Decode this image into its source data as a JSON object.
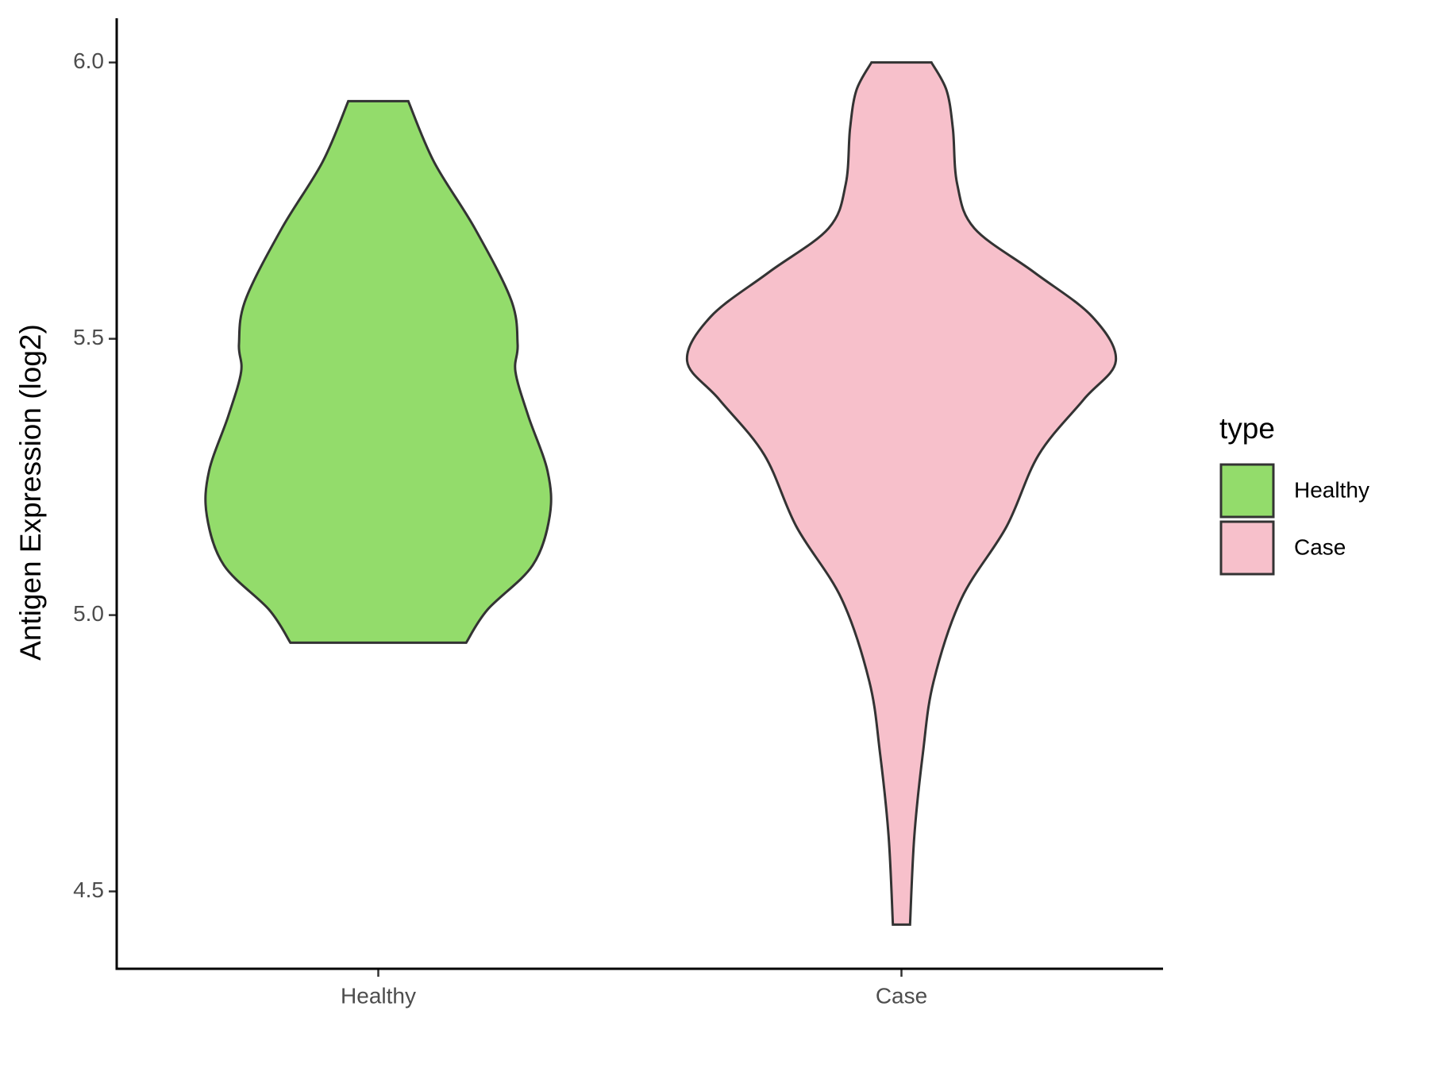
{
  "chart_data": {
    "type": "violin",
    "y_label": "Antigen Expression (log2)",
    "categories": [
      "Healthy",
      "Case"
    ],
    "ylim": [
      4.36,
      6.08
    ],
    "yticks": [
      {
        "value": 4.5,
        "label": "4.5"
      },
      {
        "value": 5.0,
        "label": "5.0"
      },
      {
        "value": 5.5,
        "label": "5.5"
      },
      {
        "value": 6.0,
        "label": "6.0"
      }
    ],
    "legend_title": "type",
    "legend_position": "right",
    "series": [
      {
        "name": "Healthy",
        "color": "#93dc6b",
        "y": [
          5.93,
          5.82,
          5.7,
          5.57,
          5.49,
          5.44,
          5.36,
          5.26,
          5.18,
          5.09,
          5.01,
          4.95
        ],
        "density": [
          0.14,
          0.26,
          0.45,
          0.62,
          0.65,
          0.64,
          0.7,
          0.79,
          0.8,
          0.72,
          0.51,
          0.41
        ]
      },
      {
        "name": "Case",
        "color": "#f7c0cb",
        "y": [
          6.0,
          5.95,
          5.88,
          5.78,
          5.7,
          5.62,
          5.54,
          5.46,
          5.39,
          5.29,
          5.16,
          5.03,
          4.88,
          4.75,
          4.6,
          4.44
        ],
        "density": [
          0.14,
          0.21,
          0.24,
          0.26,
          0.34,
          0.62,
          0.89,
          1.0,
          0.85,
          0.64,
          0.49,
          0.28,
          0.15,
          0.1,
          0.06,
          0.04
        ]
      }
    ]
  }
}
